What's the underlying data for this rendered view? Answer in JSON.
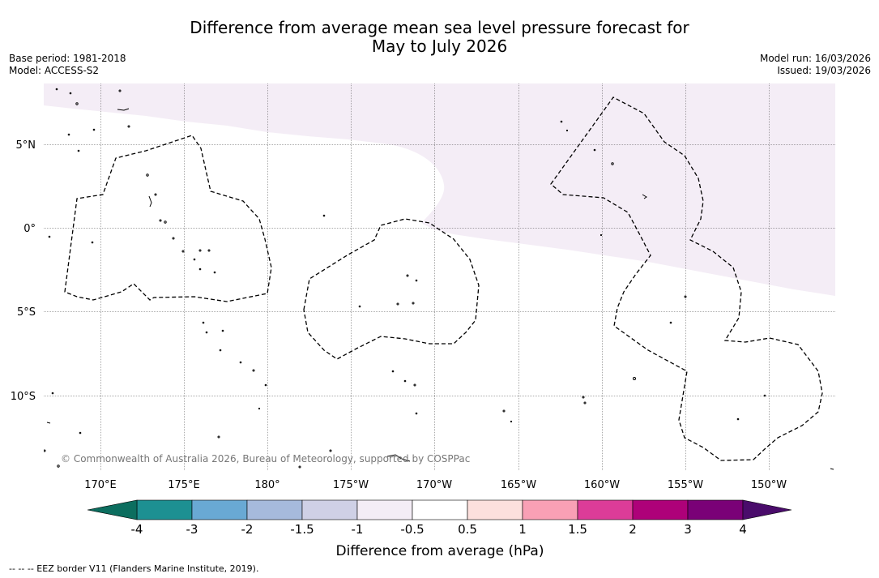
{
  "title": {
    "line1": "Difference from average mean sea level pressure forecast for",
    "line2": "May to July 2026"
  },
  "meta_left": {
    "base_period": "Base period: 1981-2018",
    "model": "Model: ACCESS-S2"
  },
  "meta_right": {
    "model_run": "Model run: 16/03/2026",
    "issued": "Issued: 19/03/2026"
  },
  "map": {
    "lat_labels": [
      "5°N",
      "0°",
      "5°S",
      "10°S"
    ],
    "lon_labels": [
      "170°E",
      "175°E",
      "180°",
      "175°W",
      "170°W",
      "165°W",
      "160°W",
      "155°W",
      "150°W"
    ],
    "copyright": "© Commonwealth of Australia 2026, Bureau of Meteorology, supported by COSPPac",
    "anomaly_region_color": "#f4edf6"
  },
  "colorbar": {
    "title": "Difference from average (hPa)",
    "ticks": [
      "-4",
      "-3",
      "-2",
      "-1.5",
      "-1",
      "-0.5",
      "0.5",
      "1",
      "1.5",
      "2",
      "3",
      "4"
    ],
    "under_color": "#0c6e5f",
    "over_color": "#4a0c6b",
    "colors": [
      "#1d9092",
      "#69a9d4",
      "#a6badc",
      "#cfd0e6",
      "#f4edf6",
      "#ffffff",
      "#fde0dd",
      "#f9a0b5",
      "#dc3c98",
      "#ae0179",
      "#7a0177"
    ]
  },
  "footnote": "-- -- -- EEZ border V11 (Flanders Marine Institute, 2019)."
}
